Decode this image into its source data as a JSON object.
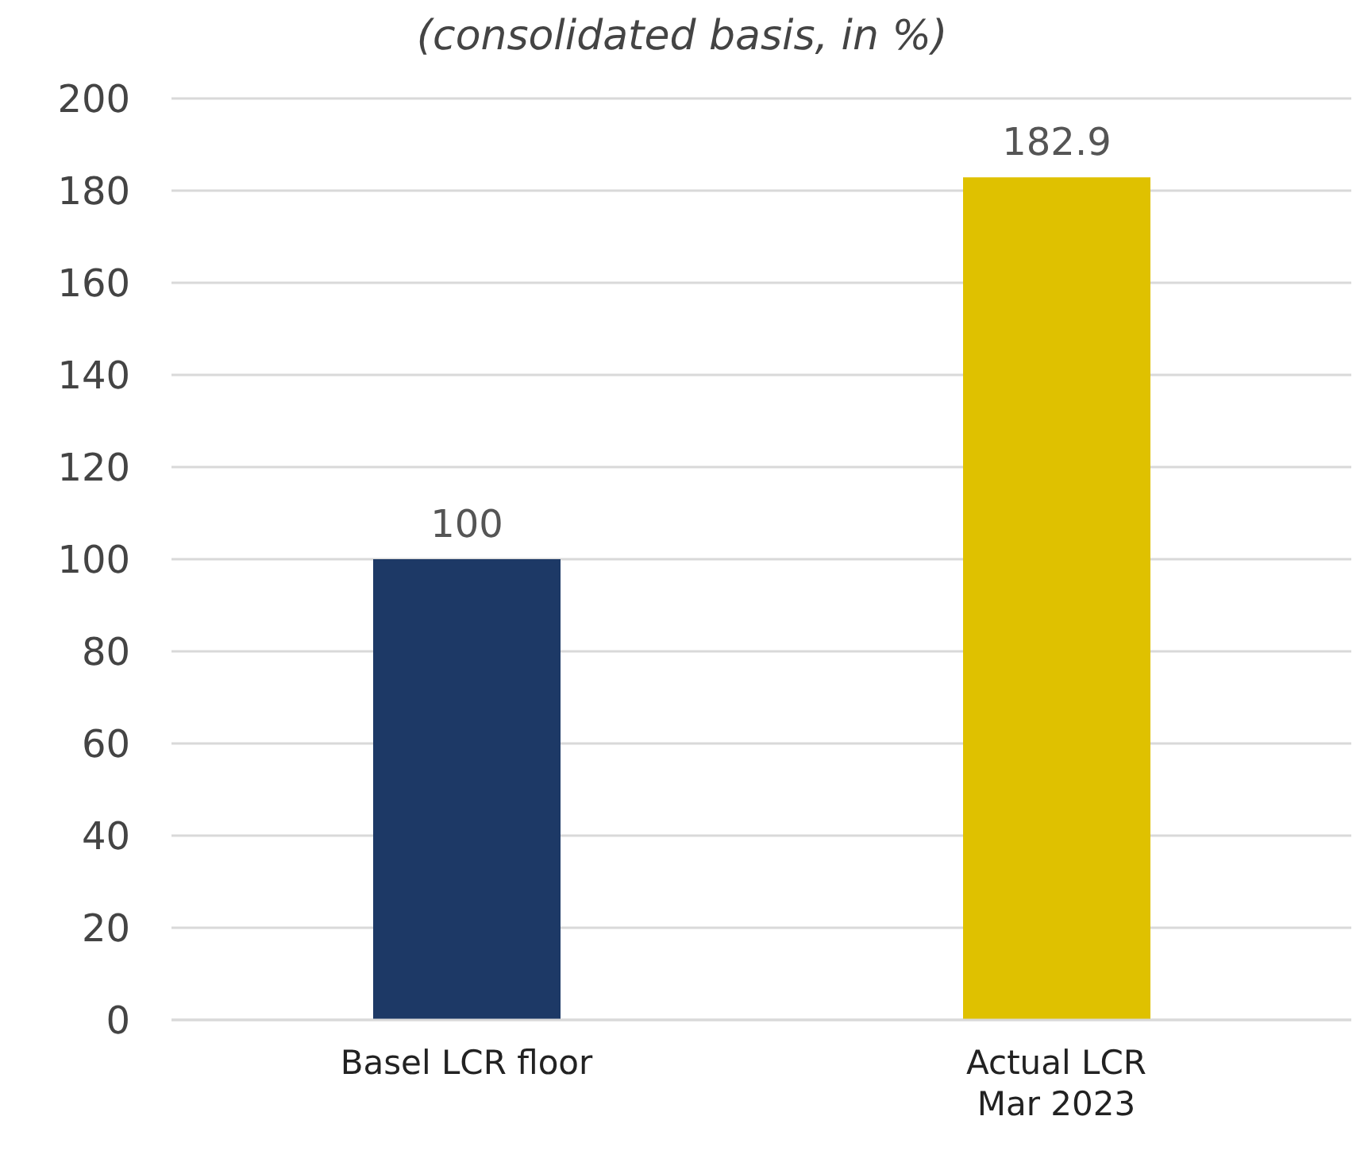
{
  "chart_data": {
    "type": "bar",
    "subtitle": "(consolidated basis, in %)",
    "categories": [
      "Basel LCR floor",
      "Actual LCR\nMar 2023"
    ],
    "values": [
      100,
      182.9
    ],
    "colors": [
      "#1d3966",
      "#dfc100"
    ],
    "ylim": [
      0,
      200
    ],
    "yticks": [
      0,
      20,
      40,
      60,
      80,
      100,
      120,
      140,
      160,
      180,
      200
    ],
    "grid": "y",
    "data_labels": true,
    "legend": false
  }
}
